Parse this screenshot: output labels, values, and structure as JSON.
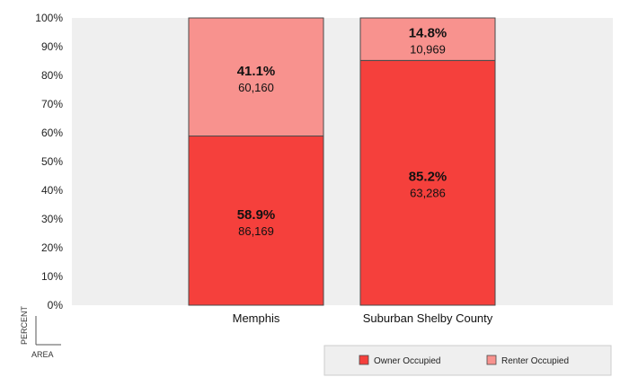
{
  "chart_data": {
    "type": "bar",
    "stacked": true,
    "categories": [
      "Memphis",
      "Suburban Shelby County"
    ],
    "series": [
      {
        "name": "Owner Occupied",
        "color": "#f5403c",
        "values": [
          58.9,
          85.2
        ],
        "labels": [
          "58.9%",
          "85.2%"
        ],
        "counts": [
          "86,169",
          "63,286"
        ]
      },
      {
        "name": "Renter Occupied",
        "color": "#f8928e",
        "values": [
          41.1,
          14.8
        ],
        "labels": [
          "41.1%",
          "14.8%"
        ],
        "counts": [
          "60,160",
          "10,969"
        ]
      }
    ],
    "ylim": [
      0,
      100
    ],
    "y_ticks": [
      "0%",
      "10%",
      "20%",
      "30%",
      "40%",
      "50%",
      "60%",
      "70%",
      "80%",
      "90%",
      "100%"
    ],
    "ylabel": "PERCENT",
    "xlabel": "AREA",
    "plot_background": "#efefef",
    "legend_position": "bottom-right",
    "grid": false
  }
}
